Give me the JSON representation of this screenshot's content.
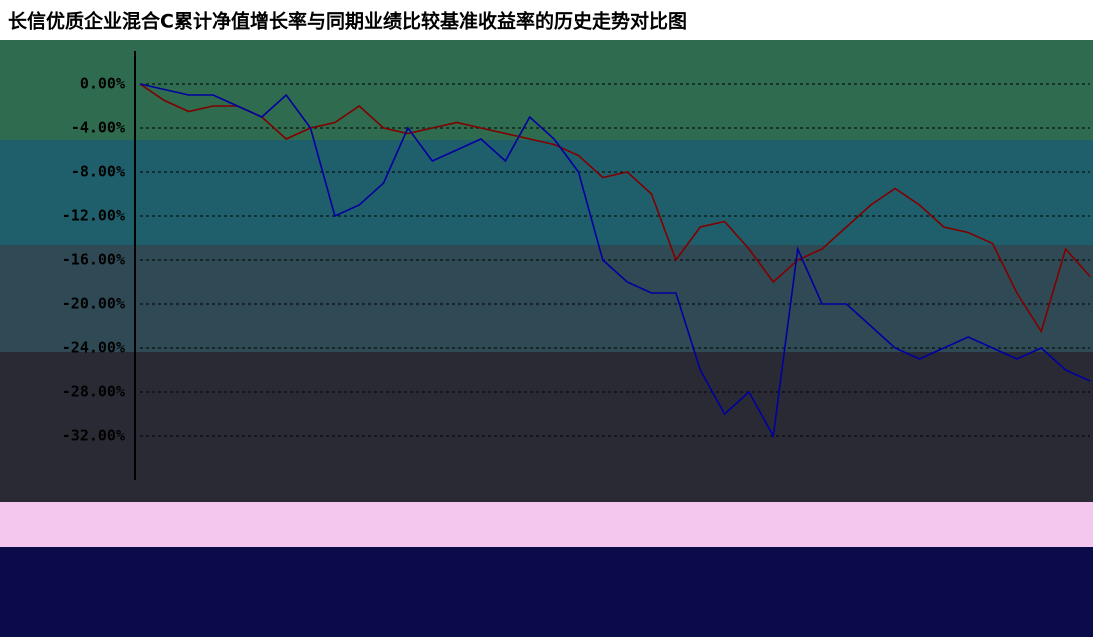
{
  "chart_data": {
    "type": "line",
    "title": "长信优质企业混合C累计净值增长率与同期业绩比较基准收益率的历史走势对比图",
    "categories": [
      null,
      null,
      null,
      null,
      null,
      null,
      null,
      null,
      null,
      null,
      null,
      null,
      null,
      null,
      null,
      null,
      null,
      null,
      null,
      null,
      null,
      null,
      null,
      null,
      null,
      null,
      null,
      null,
      null,
      null,
      null,
      null,
      null,
      null,
      null,
      null,
      null,
      null,
      null,
      null
    ],
    "series": [
      {
        "color": "#800000",
        "values": [
          0,
          -1.5,
          -2.5,
          -2,
          -2,
          -3,
          -5,
          -4,
          -3.5,
          -2,
          -4,
          -4.5,
          -4,
          -3.5,
          -4,
          -4.5,
          -5,
          -5.5,
          -6.5,
          -8.5,
          -8,
          -10,
          -16,
          -13,
          -12.5,
          -15,
          -18,
          -16,
          -15,
          -13,
          -11,
          -9.5,
          -11,
          -13,
          -13.5,
          -14.5,
          -19,
          -22.5,
          -15,
          -17.5
        ]
      },
      {
        "color": "#0000a0",
        "values": [
          0,
          -0.5,
          -1,
          -1,
          -2,
          -3,
          -1,
          -4,
          -12,
          -11,
          -9,
          -4,
          -7,
          -6,
          -5,
          -7,
          -3,
          -5,
          -8,
          -16,
          -18,
          -19,
          -19,
          -26,
          -30,
          -28,
          -32,
          -15,
          -20,
          -20,
          -22,
          -24,
          -25,
          -24,
          -23,
          -24,
          -25,
          -24,
          -26,
          -27
        ]
      }
    ],
    "ylim": [
      -36,
      3
    ],
    "yticks": [
      {
        "value": 0,
        "label": "0.00%"
      },
      {
        "value": -4,
        "label": "-4.00%"
      },
      {
        "value": -8,
        "label": "-8.00%"
      },
      {
        "value": -12,
        "label": "-12.00%"
      },
      {
        "value": -16,
        "label": "-16.00%"
      },
      {
        "value": -20,
        "label": "-20.00%"
      },
      {
        "value": -24,
        "label": "-24.00%"
      },
      {
        "value": -28,
        "label": "-28.00%"
      },
      {
        "value": -32,
        "label": "-32.00%"
      }
    ],
    "grid": true
  }
}
